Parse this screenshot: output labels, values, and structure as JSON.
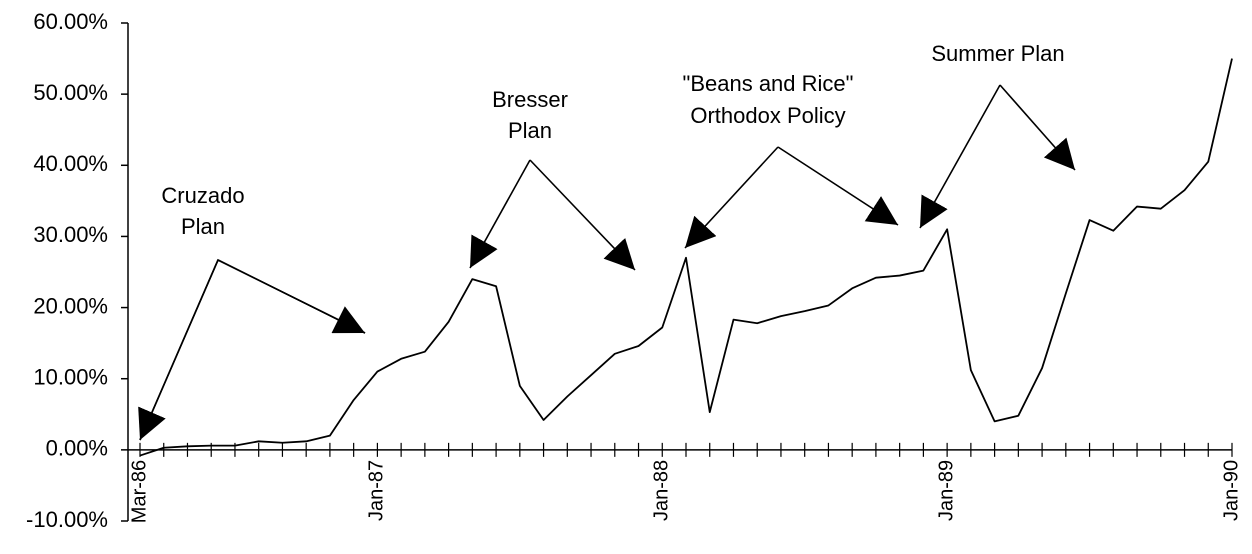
{
  "chart_data": {
    "type": "line",
    "categories": [
      "Mar-86",
      null,
      null,
      null,
      null,
      null,
      null,
      null,
      null,
      null,
      "Jan-87",
      null,
      null,
      null,
      null,
      null,
      null,
      null,
      null,
      null,
      null,
      null,
      "Jan-88",
      null,
      null,
      null,
      null,
      null,
      null,
      null,
      null,
      null,
      null,
      null,
      "Jan-89",
      null,
      null,
      null,
      null,
      null,
      null,
      null,
      null,
      null,
      null,
      null,
      "Jan-90"
    ],
    "values": [
      -0.8,
      0.3,
      0.5,
      0.6,
      0.6,
      1.2,
      1.0,
      1.2,
      2.0,
      7.0,
      11.0,
      12.8,
      13.8,
      18.0,
      24.0,
      23.0,
      9.0,
      4.2,
      7.5,
      10.5,
      13.5,
      14.6,
      17.2,
      27.0,
      5.3,
      18.3,
      17.8,
      18.8,
      19.5,
      20.3,
      22.7,
      24.2,
      24.5,
      25.2,
      31.0,
      11.2,
      4.0,
      4.8,
      11.5,
      22.0,
      32.3,
      30.8,
      34.2,
      33.9,
      36.5,
      40.5,
      55.0
    ],
    "color": "#000000",
    "ylim": [
      -10,
      60
    ],
    "yticks": [
      {
        "value": -10,
        "label": "-10.00%"
      },
      {
        "value": 0,
        "label": "0.00%"
      },
      {
        "value": 10,
        "label": "10.00%"
      },
      {
        "value": 20,
        "label": "20.00%"
      },
      {
        "value": 30,
        "label": "30.00%"
      },
      {
        "value": 40,
        "label": "40.00%"
      },
      {
        "value": 50,
        "label": "50.00%"
      },
      {
        "value": 60,
        "label": "60.00%"
      }
    ],
    "annotations": [
      {
        "lines": [
          "Cruzado",
          "Plan"
        ]
      },
      {
        "lines": [
          "Bresser",
          "Plan"
        ]
      },
      {
        "lines": [
          "\"Beans and Rice\"",
          "Orthodox Policy"
        ]
      },
      {
        "lines": [
          "Summer Plan"
        ]
      }
    ]
  }
}
